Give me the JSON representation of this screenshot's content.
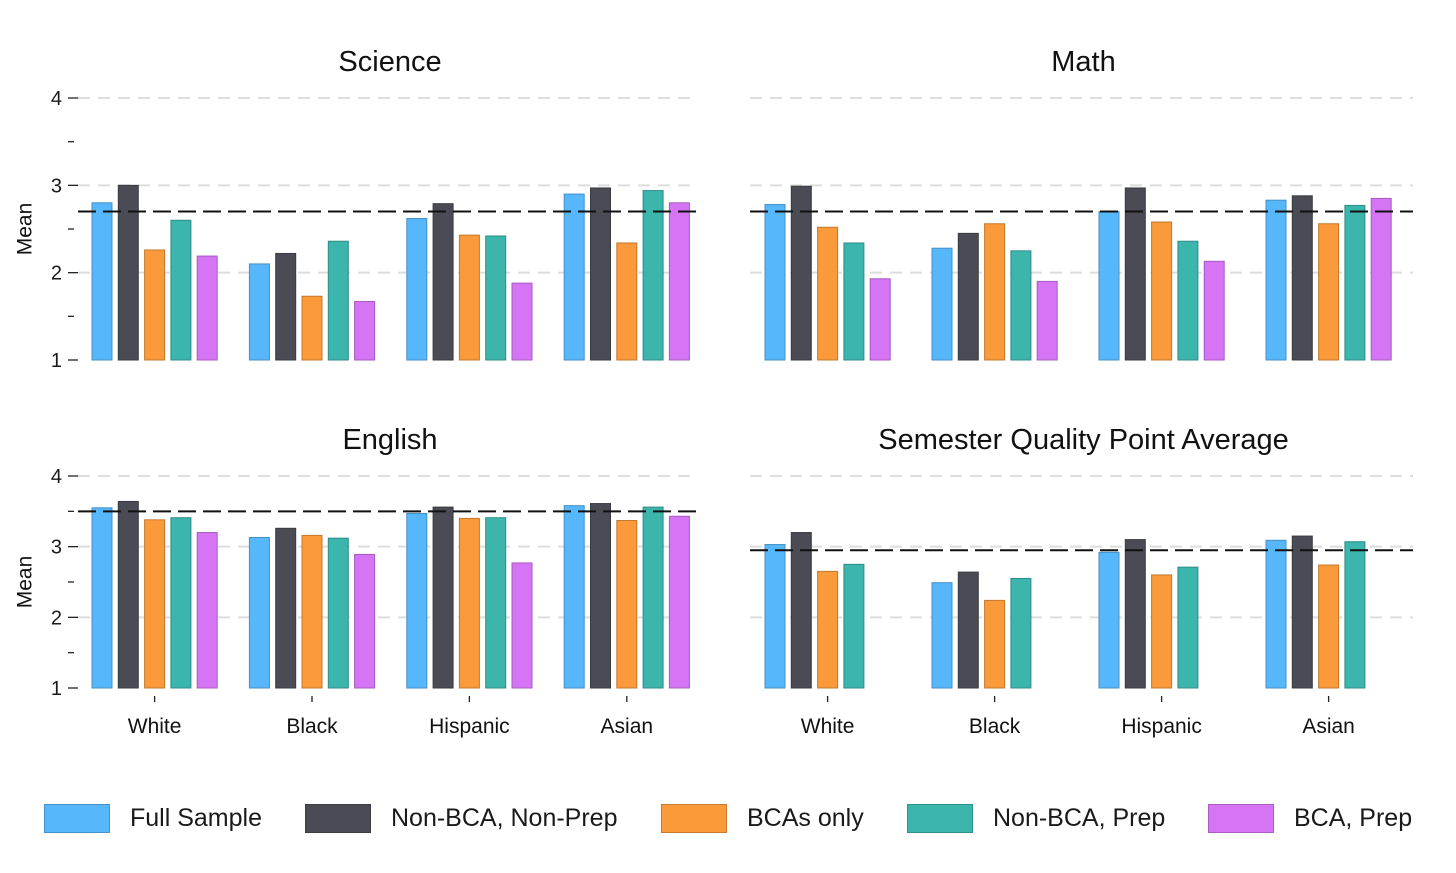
{
  "colors": {
    "full_sample": "#57b7fb",
    "non_bca_non_prep": "#4a4b55",
    "bcas_only": "#fb9a3a",
    "non_bca_prep": "#3cb5ad",
    "bca_prep": "#d575f5",
    "reference_line": "#111111",
    "gridline": "#dddddd"
  },
  "legend": {
    "items": [
      {
        "key": "full_sample",
        "label": "Full Sample"
      },
      {
        "key": "non_bca_non_prep",
        "label": "Non-BCA, Non-Prep"
      },
      {
        "key": "bcas_only",
        "label": "BCAs only"
      },
      {
        "key": "non_bca_prep",
        "label": "Non-BCA, Prep"
      },
      {
        "key": "bca_prep",
        "label": "BCA, Prep"
      }
    ]
  },
  "chart_data": [
    {
      "type": "bar",
      "title": "Science",
      "ylabel": "Mean",
      "ylim": [
        1,
        4
      ],
      "yticks": [
        1,
        2,
        3,
        4
      ],
      "reference_line": 2.7,
      "categories": [
        "White",
        "Black",
        "Hispanic",
        "Asian"
      ],
      "series": [
        {
          "name": "Full Sample",
          "key": "full_sample",
          "values": [
            2.8,
            2.1,
            2.62,
            2.9
          ]
        },
        {
          "name": "Non-BCA, Non-Prep",
          "key": "non_bca_non_prep",
          "values": [
            3.0,
            2.22,
            2.79,
            2.97
          ]
        },
        {
          "name": "BCAs only",
          "key": "bcas_only",
          "values": [
            2.26,
            1.73,
            2.43,
            2.34
          ]
        },
        {
          "name": "Non-BCA, Prep",
          "key": "non_bca_prep",
          "values": [
            2.6,
            2.36,
            2.42,
            2.94
          ]
        },
        {
          "name": "BCA, Prep",
          "key": "bca_prep",
          "values": [
            2.19,
            1.67,
            1.88,
            2.8
          ]
        }
      ]
    },
    {
      "type": "bar",
      "title": "Math",
      "ylabel": "",
      "ylim": [
        1,
        4
      ],
      "yticks": [],
      "reference_line": 2.7,
      "categories": [
        "White",
        "Black",
        "Hispanic",
        "Asian"
      ],
      "series": [
        {
          "name": "Full Sample",
          "key": "full_sample",
          "values": [
            2.78,
            2.28,
            2.7,
            2.83
          ]
        },
        {
          "name": "Non-BCA, Non-Prep",
          "key": "non_bca_non_prep",
          "values": [
            2.99,
            2.45,
            2.97,
            2.88
          ]
        },
        {
          "name": "BCAs only",
          "key": "bcas_only",
          "values": [
            2.52,
            2.56,
            2.58,
            2.56
          ]
        },
        {
          "name": "Non-BCA, Prep",
          "key": "non_bca_prep",
          "values": [
            2.34,
            2.25,
            2.36,
            2.77
          ]
        },
        {
          "name": "BCA, Prep",
          "key": "bca_prep",
          "values": [
            1.93,
            1.9,
            2.13,
            2.85
          ]
        }
      ]
    },
    {
      "type": "bar",
      "title": "English",
      "ylabel": "Mean",
      "ylim": [
        1,
        4
      ],
      "yticks": [
        1,
        2,
        3,
        4
      ],
      "reference_line": 3.5,
      "categories": [
        "White",
        "Black",
        "Hispanic",
        "Asian"
      ],
      "series": [
        {
          "name": "Full Sample",
          "key": "full_sample",
          "values": [
            3.55,
            3.13,
            3.47,
            3.58
          ]
        },
        {
          "name": "Non-BCA, Non-Prep",
          "key": "non_bca_non_prep",
          "values": [
            3.64,
            3.26,
            3.56,
            3.61
          ]
        },
        {
          "name": "BCAs only",
          "key": "bcas_only",
          "values": [
            3.38,
            3.16,
            3.4,
            3.37
          ]
        },
        {
          "name": "Non-BCA, Prep",
          "key": "non_bca_prep",
          "values": [
            3.41,
            3.12,
            3.41,
            3.56
          ]
        },
        {
          "name": "BCA, Prep",
          "key": "bca_prep",
          "values": [
            3.2,
            2.89,
            2.77,
            3.43
          ]
        }
      ]
    },
    {
      "type": "bar",
      "title": "Semester Quality Point Average",
      "ylabel": "",
      "ylim": [
        1,
        4
      ],
      "yticks": [],
      "reference_line": 2.95,
      "categories": [
        "White",
        "Black",
        "Hispanic",
        "Asian"
      ],
      "series": [
        {
          "name": "Full Sample",
          "key": "full_sample",
          "values": [
            3.03,
            2.49,
            2.92,
            3.09
          ]
        },
        {
          "name": "Non-BCA, Non-Prep",
          "key": "non_bca_non_prep",
          "values": [
            3.2,
            2.64,
            3.1,
            3.15
          ]
        },
        {
          "name": "BCAs only",
          "key": "bcas_only",
          "values": [
            2.65,
            2.24,
            2.6,
            2.74
          ]
        },
        {
          "name": "Non-BCA, Prep",
          "key": "non_bca_prep",
          "values": [
            2.75,
            2.55,
            2.71,
            3.07
          ]
        },
        {
          "name": "BCA, Prep",
          "key": "bca_prep",
          "values": [
            null,
            null,
            null,
            null
          ]
        }
      ]
    }
  ]
}
